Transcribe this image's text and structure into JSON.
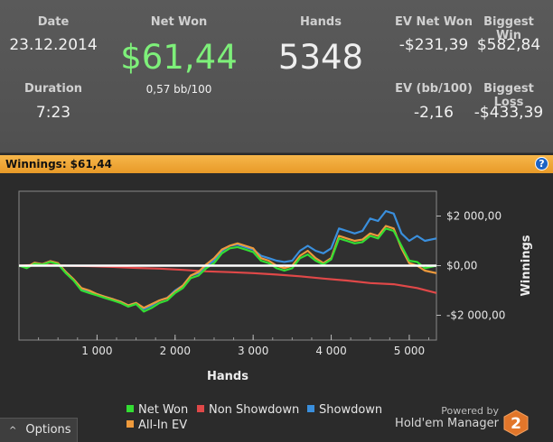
{
  "stats": {
    "date_label": "Date",
    "date_value": "23.12.2014",
    "netwon_label": "Net Won",
    "netwon_value": "$61,44",
    "bb_value": "0,57 bb/100",
    "hands_label": "Hands",
    "hands_value": "5348",
    "evnet_label": "EV Net Won",
    "evnet_value": "-$231,39",
    "bigwin_label": "Biggest Win",
    "bigwin_value": "$582,84",
    "duration_label": "Duration",
    "duration_value": "7:23",
    "evbb_label": "EV (bb/100)",
    "evbb_value": "-2,16",
    "bigloss_label": "Biggest Loss",
    "bigloss_value": "-$433,39"
  },
  "winbar": {
    "label": "Winnings:",
    "value": "$61,44",
    "help": "?"
  },
  "chart_data": {
    "type": "line",
    "xlabel": "Hands",
    "ylabel": "Winnings",
    "xlim": [
      0,
      5348
    ],
    "ylim": [
      -3000,
      3000
    ],
    "xticks": [
      1000,
      2000,
      3000,
      4000,
      5000
    ],
    "xtick_labels": [
      "1 000",
      "2 000",
      "3 000",
      "4 000",
      "5 000"
    ],
    "yticks": [
      2000,
      0,
      -2000
    ],
    "ytick_labels": [
      "$2 000,00",
      "$0,00",
      "-$2 000,00"
    ],
    "grid": false,
    "legend_position": "bottom",
    "series": [
      {
        "name": "Net Won",
        "color": "#33dd33",
        "x": [
          0,
          100,
          200,
          300,
          400,
          500,
          600,
          700,
          800,
          900,
          1000,
          1100,
          1200,
          1300,
          1400,
          1500,
          1600,
          1700,
          1800,
          1900,
          2000,
          2100,
          2200,
          2300,
          2400,
          2500,
          2600,
          2700,
          2800,
          2900,
          3000,
          3100,
          3200,
          3300,
          3400,
          3500,
          3600,
          3700,
          3800,
          3900,
          4000,
          4100,
          4200,
          4300,
          4400,
          4500,
          4600,
          4700,
          4800,
          4900,
          5000,
          5100,
          5200,
          5348
        ],
        "y": [
          0,
          -100,
          80,
          40,
          150,
          60,
          -300,
          -600,
          -1000,
          -1100,
          -1200,
          -1300,
          -1400,
          -1500,
          -1650,
          -1550,
          -1850,
          -1700,
          -1500,
          -1400,
          -1100,
          -900,
          -500,
          -400,
          -100,
          100,
          500,
          700,
          750,
          650,
          550,
          200,
          100,
          -100,
          -200,
          -100,
          300,
          450,
          200,
          50,
          250,
          1100,
          1000,
          900,
          950,
          1200,
          1100,
          1500,
          1400,
          800,
          200,
          150,
          -100,
          0
        ]
      },
      {
        "name": "Non Showdown",
        "color": "#e04848",
        "x": [
          0,
          300,
          600,
          900,
          1200,
          1500,
          1800,
          2100,
          2400,
          2700,
          3000,
          3300,
          3600,
          3900,
          4200,
          4500,
          4800,
          5100,
          5348
        ],
        "y": [
          0,
          40,
          0,
          -20,
          -50,
          -90,
          -120,
          -170,
          -230,
          -260,
          -300,
          -360,
          -430,
          -520,
          -600,
          -700,
          -750,
          -900,
          -1100
        ]
      },
      {
        "name": "Showdown",
        "color": "#3a8fdd",
        "x": [
          0,
          100,
          200,
          300,
          400,
          500,
          600,
          700,
          800,
          900,
          1000,
          1100,
          1200,
          1300,
          1400,
          1500,
          1600,
          1700,
          1800,
          1900,
          2000,
          2100,
          2200,
          2300,
          2400,
          2500,
          2600,
          2700,
          2800,
          2900,
          3000,
          3100,
          3200,
          3300,
          3400,
          3500,
          3600,
          3700,
          3800,
          3900,
          4000,
          4100,
          4200,
          4300,
          4400,
          4500,
          4600,
          4700,
          4800,
          4900,
          5000,
          5100,
          5200,
          5348
        ],
        "y": [
          0,
          -80,
          100,
          60,
          160,
          80,
          -250,
          -560,
          -950,
          -1050,
          -1150,
          -1250,
          -1350,
          -1450,
          -1600,
          -1500,
          -1750,
          -1600,
          -1400,
          -1300,
          -1000,
          -800,
          -400,
          -300,
          0,
          200,
          600,
          800,
          850,
          750,
          650,
          400,
          300,
          200,
          150,
          200,
          600,
          800,
          600,
          500,
          700,
          1500,
          1400,
          1300,
          1400,
          1900,
          1800,
          2200,
          2100,
          1300,
          1000,
          1200,
          1000,
          1100
        ]
      },
      {
        "name": "All-In EV",
        "color": "#ee9a3c",
        "x": [
          0,
          100,
          200,
          300,
          400,
          500,
          600,
          700,
          800,
          900,
          1000,
          1100,
          1200,
          1300,
          1400,
          1500,
          1600,
          1700,
          1800,
          1900,
          2000,
          2100,
          2200,
          2300,
          2400,
          2500,
          2600,
          2700,
          2800,
          2900,
          3000,
          3100,
          3200,
          3300,
          3400,
          3500,
          3600,
          3700,
          3800,
          3900,
          4000,
          4100,
          4200,
          4300,
          4400,
          4500,
          4600,
          4700,
          4800,
          4900,
          5000,
          5100,
          5200,
          5348
        ],
        "y": [
          0,
          -60,
          120,
          60,
          180,
          100,
          -250,
          -550,
          -900,
          -1000,
          -1150,
          -1250,
          -1350,
          -1450,
          -1600,
          -1500,
          -1700,
          -1550,
          -1400,
          -1300,
          -1050,
          -800,
          -400,
          -250,
          50,
          300,
          650,
          800,
          900,
          800,
          700,
          300,
          200,
          0,
          -100,
          0,
          400,
          600,
          300,
          100,
          300,
          1200,
          1100,
          1000,
          1050,
          1300,
          1200,
          1600,
          1500,
          700,
          100,
          0,
          -200,
          -300
        ]
      }
    ]
  },
  "options": {
    "chevron": "^",
    "label": "Options"
  },
  "branding": {
    "powered": "Powered by",
    "name": "Hold'em Manager",
    "logo_number": "2"
  }
}
